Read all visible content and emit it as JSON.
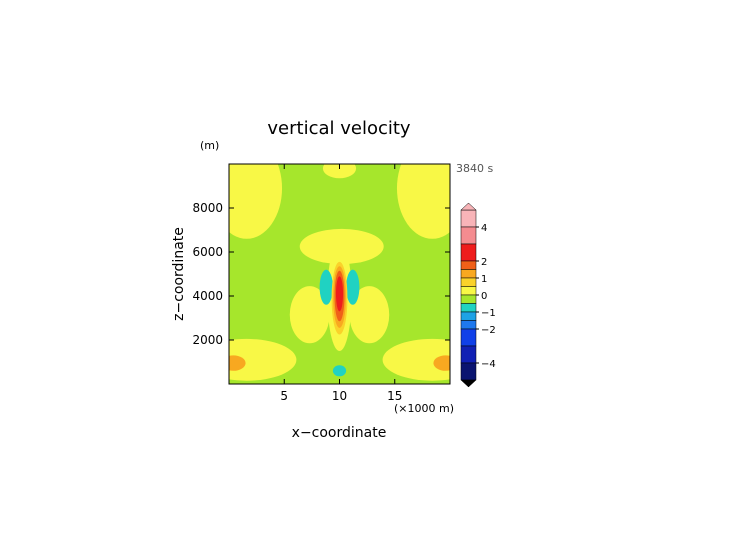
{
  "chart_data": {
    "type": "heatmap",
    "title": "vertical velocity",
    "xlabel": "x−coordinate",
    "ylabel": "z−coordinate",
    "x_unit": "(×1000 m)",
    "y_unit": "(m)",
    "time_label": "3840 s",
    "xlim": [
      0,
      20
    ],
    "ylim": [
      0,
      10000
    ],
    "x_ticks": [
      {
        "value": 5,
        "label": "5"
      },
      {
        "value": 10,
        "label": "10"
      },
      {
        "value": 15,
        "label": "15"
      }
    ],
    "y_ticks": [
      {
        "value": 2000,
        "label": "2000"
      },
      {
        "value": 4000,
        "label": "4000"
      },
      {
        "value": 6000,
        "label": "6000"
      },
      {
        "value": 8000,
        "label": "8000"
      }
    ],
    "colorbar": {
      "range": [
        -5,
        5
      ],
      "tick_labels": [
        {
          "value": 4,
          "label": "4"
        },
        {
          "value": 2,
          "label": "2"
        },
        {
          "value": 1,
          "label": "1"
        },
        {
          "value": 0,
          "label": "0"
        },
        {
          "value": -1,
          "label": "−1"
        },
        {
          "value": -2,
          "label": "−2"
        },
        {
          "value": -4,
          "label": "−4"
        }
      ],
      "levels": [
        {
          "lo": 4.0,
          "hi": 5.0,
          "color": "#f8b4b8"
        },
        {
          "lo": 3.0,
          "hi": 4.0,
          "color": "#f48c90"
        },
        {
          "lo": 2.0,
          "hi": 3.0,
          "color": "#ee1c1c"
        },
        {
          "lo": 1.5,
          "hi": 2.0,
          "color": "#f06018"
        },
        {
          "lo": 1.0,
          "hi": 1.5,
          "color": "#f8a820"
        },
        {
          "lo": 0.5,
          "hi": 1.0,
          "color": "#fad22a"
        },
        {
          "lo": 0.0,
          "hi": 0.5,
          "color": "#f8f846"
        },
        {
          "lo": -0.5,
          "hi": 0.0,
          "color": "#a6e62c"
        },
        {
          "lo": -1.0,
          "hi": -0.5,
          "color": "#20d2c2"
        },
        {
          "lo": -1.5,
          "hi": -1.0,
          "color": "#1ea2e6"
        },
        {
          "lo": -2.0,
          "hi": -1.5,
          "color": "#1e78ee"
        },
        {
          "lo": -3.0,
          "hi": -2.0,
          "color": "#1040e8"
        },
        {
          "lo": -4.0,
          "hi": -3.0,
          "color": "#1020b4"
        },
        {
          "lo": -5.0,
          "hi": -4.0,
          "color": "#0a1470"
        }
      ],
      "upper_extend_color": "#f8b4b8",
      "lower_extend_color": "#000000"
    },
    "field": [
      {
        "shape": "rect",
        "x0": 0,
        "x1": 20,
        "z0": 0,
        "z1": 10000,
        "value": -0.2
      },
      {
        "shape": "ellipse",
        "cx": 1.6,
        "cz": 8900,
        "rx": 3.2,
        "rz": 2300,
        "value": 0.2
      },
      {
        "shape": "ellipse",
        "cx": 18.4,
        "cz": 8900,
        "rx": 3.2,
        "rz": 2300,
        "value": 0.2
      },
      {
        "shape": "ellipse",
        "cx": 10,
        "cz": 9800,
        "rx": 1.5,
        "rz": 450,
        "value": 0.2
      },
      {
        "shape": "ellipse",
        "cx": 10.2,
        "cz": 6250,
        "rx": 3.8,
        "rz": 800,
        "value": 0.2
      },
      {
        "shape": "ellipse",
        "cx": 1.6,
        "cz": 1100,
        "rx": 4.5,
        "rz": 950,
        "value": 0.2
      },
      {
        "shape": "ellipse",
        "cx": 18.4,
        "cz": 1100,
        "rx": 4.5,
        "rz": 950,
        "value": 0.2
      },
      {
        "shape": "ellipse",
        "cx": 7.3,
        "cz": 3150,
        "rx": 1.8,
        "rz": 1300,
        "value": 0.2
      },
      {
        "shape": "ellipse",
        "cx": 12.7,
        "cz": 3150,
        "rx": 1.8,
        "rz": 1300,
        "value": 0.2
      },
      {
        "shape": "ellipse",
        "cx": 10,
        "cz": 4000,
        "rx": 1.1,
        "rz": 2500,
        "value": 0.3
      },
      {
        "shape": "ellipse",
        "cx": 0.4,
        "cz": 950,
        "rx": 1.1,
        "rz": 350,
        "value": 1.0
      },
      {
        "shape": "ellipse",
        "cx": 19.6,
        "cz": 950,
        "rx": 1.1,
        "rz": 350,
        "value": 1.0
      },
      {
        "shape": "ellipse",
        "cx": 8.8,
        "cz": 4400,
        "rx": 0.6,
        "rz": 800,
        "value": -0.7
      },
      {
        "shape": "ellipse",
        "cx": 11.2,
        "cz": 4400,
        "rx": 0.6,
        "rz": 800,
        "value": -0.7
      },
      {
        "shape": "ellipse",
        "cx": 10,
        "cz": 600,
        "rx": 0.6,
        "rz": 250,
        "value": -0.7
      },
      {
        "shape": "ellipse",
        "cx": 10,
        "cz": 3900,
        "rx": 0.72,
        "rz": 1650,
        "value": 0.8
      },
      {
        "shape": "ellipse",
        "cx": 10,
        "cz": 3950,
        "rx": 0.58,
        "rz": 1400,
        "value": 1.2
      },
      {
        "shape": "ellipse",
        "cx": 10,
        "cz": 4000,
        "rx": 0.45,
        "rz": 1150,
        "value": 1.8
      },
      {
        "shape": "ellipse",
        "cx": 10,
        "cz": 4100,
        "rx": 0.32,
        "rz": 800,
        "value": 2.5
      }
    ]
  }
}
